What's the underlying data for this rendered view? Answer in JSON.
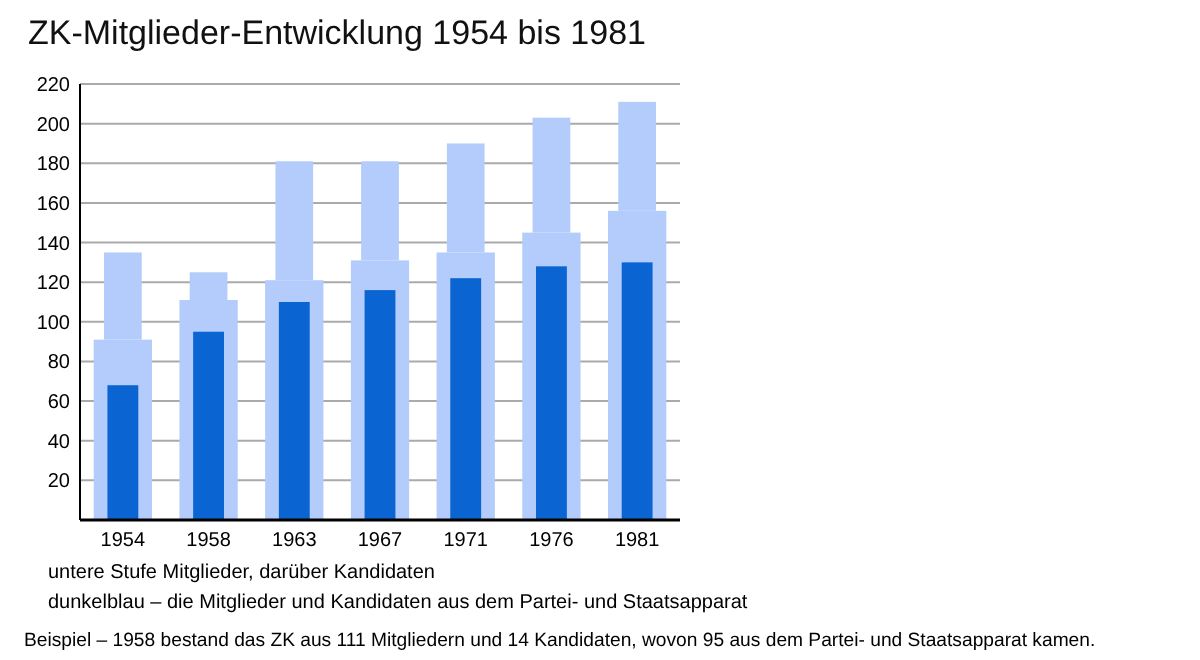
{
  "chart_data": {
    "type": "bar",
    "title": "ZK-Mitglieder-Entwicklung 1954 bis 1981",
    "categories": [
      "1954",
      "1958",
      "1963",
      "1967",
      "1971",
      "1976",
      "1981"
    ],
    "series": [
      {
        "color": "#b3ccfb",
        "values": [
          91,
          111,
          121,
          131,
          135,
          145,
          156
        ]
      },
      {
        "color": "#b3ccfb",
        "values": [
          44,
          14,
          60,
          50,
          55,
          58,
          55
        ],
        "base": [
          91,
          111,
          121,
          131,
          135,
          145,
          156
        ]
      },
      {
        "color": "#0a64d2",
        "values": [
          68,
          95,
          110,
          116,
          122,
          128,
          130
        ]
      }
    ],
    "ylim": [
      0,
      220
    ],
    "yticks": [
      20,
      40,
      60,
      80,
      100,
      120,
      140,
      160,
      180,
      200,
      220
    ],
    "grid": "y",
    "annotations": [
      "untere Stufe Mitglieder, darüber Kandidaten",
      "dunkelblau – die Mitglieder und Kandidaten aus dem Partei- und Staatsapparat",
      "Beispiel – 1958 bestand das ZK aus 111 Mitgliedern und 14 Kandidaten, wovon 95 aus dem Partei- und Staatsapparat kamen."
    ]
  }
}
